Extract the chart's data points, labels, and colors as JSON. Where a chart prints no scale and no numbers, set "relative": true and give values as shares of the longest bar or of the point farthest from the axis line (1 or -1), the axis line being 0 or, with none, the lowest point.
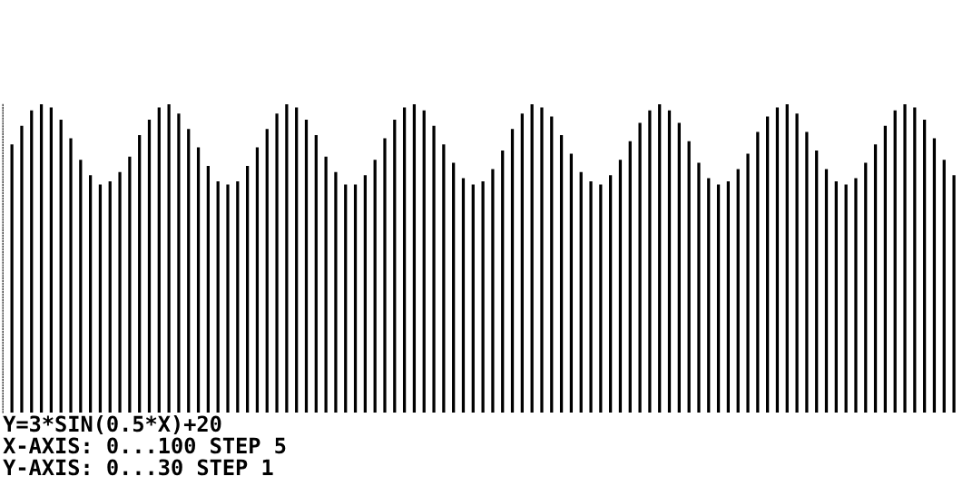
{
  "chart_data": {
    "type": "bar",
    "relative": true,
    "color": "#000000",
    "categories": [
      null,
      null,
      null,
      null,
      null,
      null,
      null,
      null,
      null,
      null,
      null,
      null,
      null,
      null,
      null,
      null,
      null,
      null,
      null,
      null,
      null,
      null,
      null,
      null,
      null,
      null,
      null,
      null,
      null,
      null,
      null,
      null,
      null,
      null,
      null,
      null,
      null,
      null,
      null,
      null,
      null,
      null,
      null,
      null,
      null,
      null,
      null,
      null,
      null,
      null,
      null,
      null,
      null,
      null,
      null,
      null,
      null,
      null,
      null,
      null,
      null,
      null,
      null,
      null,
      null,
      null,
      null,
      null,
      null,
      null,
      null,
      null,
      null,
      null,
      null,
      null,
      null,
      null,
      null,
      null,
      null,
      null,
      null,
      null,
      null,
      null,
      null,
      null,
      null,
      null,
      null,
      null,
      null,
      null,
      null,
      null,
      null
    ],
    "values": [
      0.87,
      0.93,
      0.98,
      1.0,
      0.99,
      0.95,
      0.89,
      0.82,
      0.77,
      0.74,
      0.75,
      0.78,
      0.83,
      0.9,
      0.95,
      0.99,
      1.0,
      0.97,
      0.92,
      0.86,
      0.8,
      0.75,
      0.74,
      0.75,
      0.8,
      0.86,
      0.92,
      0.97,
      1.0,
      0.99,
      0.95,
      0.9,
      0.83,
      0.78,
      0.74,
      0.74,
      0.77,
      0.82,
      0.89,
      0.95,
      0.99,
      1.0,
      0.98,
      0.93,
      0.87,
      0.81,
      0.76,
      0.74,
      0.75,
      0.79,
      0.85,
      0.92,
      0.97,
      1.0,
      0.99,
      0.96,
      0.9,
      0.84,
      0.78,
      0.75,
      0.74,
      0.77,
      0.82,
      0.88,
      0.94,
      0.98,
      1.0,
      0.98,
      0.94,
      0.88,
      0.81,
      0.76,
      0.74,
      0.75,
      0.79,
      0.84,
      0.91,
      0.96,
      0.99,
      1.0,
      0.97,
      0.91,
      0.85,
      0.79,
      0.75,
      0.74,
      0.76,
      0.81,
      0.87,
      0.93,
      0.98,
      1.0,
      0.99,
      0.95,
      0.89,
      0.82,
      0.77
    ],
    "annotations": [
      "Y=3*SIN(0.5*X)+20",
      "X-AXIS: 0...100 STEP 5",
      "Y-AXIS: 0...30 STEP 1"
    ]
  }
}
